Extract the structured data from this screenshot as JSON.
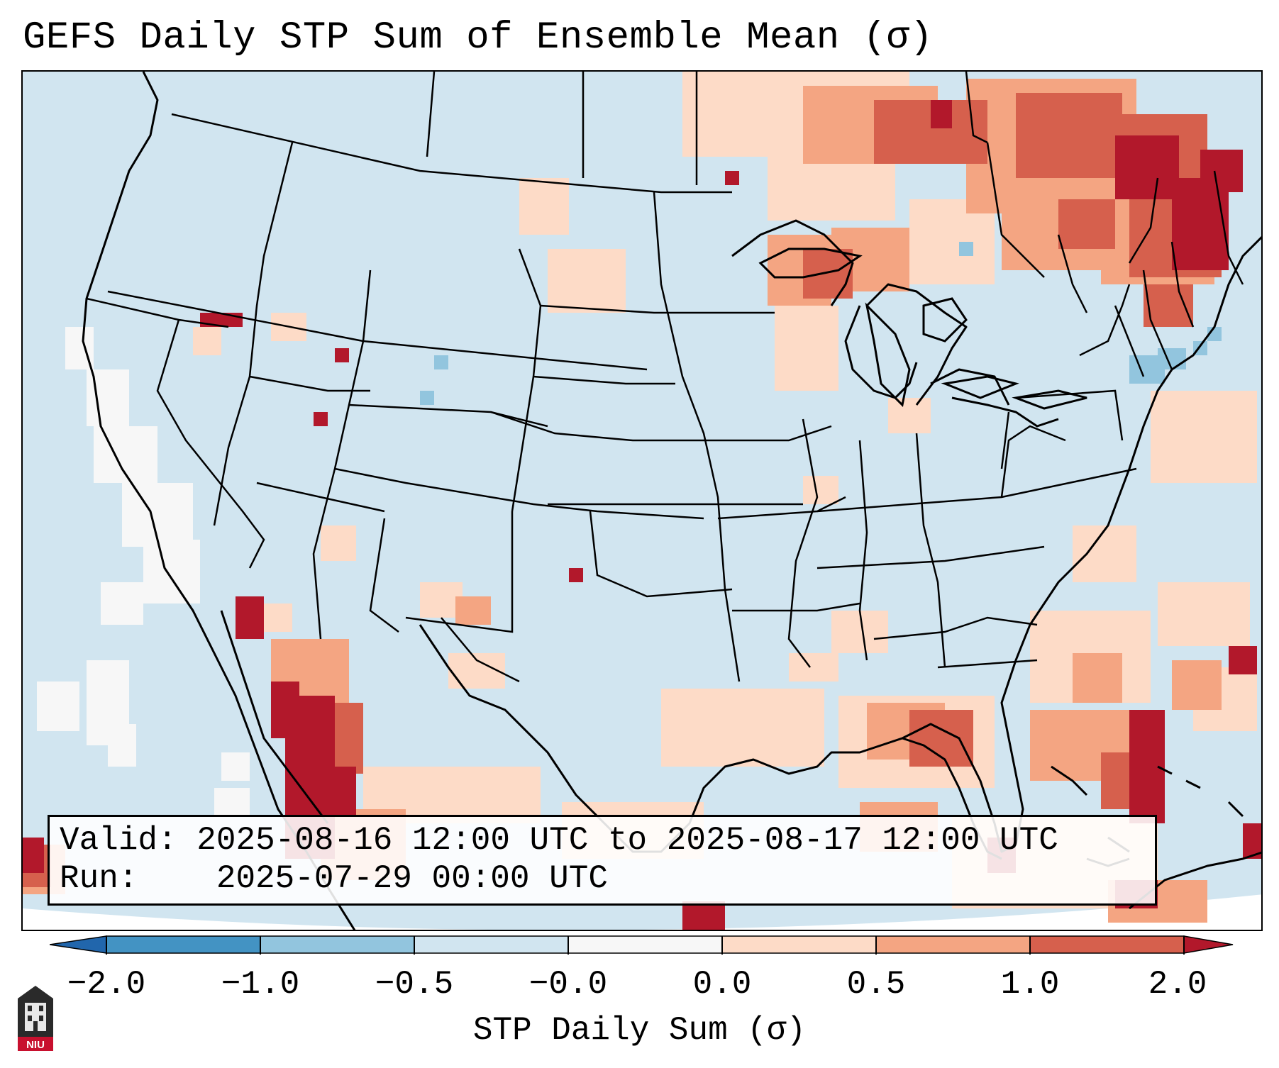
{
  "title": "GEFS Daily STP Sum of Ensemble Mean (σ)",
  "valid_label": "Valid:",
  "valid_value": "2025-08-16 12:00 UTC to 2025-08-17 12:00 UTC",
  "run_label": "Run:",
  "run_value": "2025-07-29 00:00 UTC",
  "colorbar": {
    "label": "STP Daily Sum (σ)",
    "ticks": [
      "−2.0",
      "−1.0",
      "−0.5",
      "−0.0",
      "0.0",
      "0.5",
      "1.0",
      "2.0"
    ],
    "colors": [
      "#2166ac",
      "#4393c3",
      "#92c5de",
      "#d1e5f0",
      "#f7f7f7",
      "#fddbc7",
      "#f4a582",
      "#d6604d",
      "#b2182b"
    ]
  },
  "logo_text": "NIU",
  "map": {
    "background_color": "#d1e5f0",
    "land_outline_color": "#000000"
  }
}
